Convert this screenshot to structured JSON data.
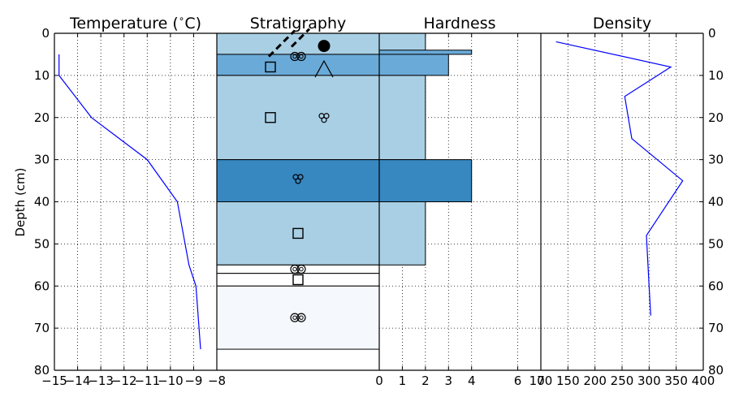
{
  "figure": {
    "ylabel": "Depth (cm)",
    "y_ticks": [
      0,
      10,
      20,
      30,
      40,
      50,
      60,
      70,
      80
    ],
    "ylim": [
      80,
      0
    ]
  },
  "chart_data": [
    {
      "type": "line",
      "title": "Temperature ($^\\circ$C)",
      "title_main": "Temperature (",
      "title_deg": "∘",
      "title_tail": "C)",
      "xlim": [
        -15,
        -8
      ],
      "x_ticks": [
        "−15",
        "−14",
        "−13",
        "−12",
        "−11",
        "−10",
        "−9",
        "−8"
      ],
      "x_tick_values": [
        -15,
        -14,
        -13,
        -12,
        -11,
        -10,
        -9,
        -8
      ],
      "grid": true,
      "line_color": "#0000ff",
      "series": [
        {
          "x": [
            -14.8,
            -14.8,
            -13.4,
            -11.0,
            -9.7,
            -9.2,
            -8.9,
            -8.7
          ],
          "y": [
            5,
            10,
            20,
            30,
            40,
            55,
            60,
            75
          ]
        }
      ]
    },
    {
      "type": "table",
      "title": "Stratigraphy",
      "layers": [
        {
          "top": 0,
          "bottom": 5,
          "color": "#a9cfe4"
        },
        {
          "top": 5,
          "bottom": 10,
          "color": "#6aaad8"
        },
        {
          "top": 10,
          "bottom": 30,
          "color": "#a9cfe4"
        },
        {
          "top": 30,
          "bottom": 40,
          "color": "#3787c0"
        },
        {
          "top": 40,
          "bottom": 55,
          "color": "#a9cfe4"
        },
        {
          "top": 55,
          "bottom": 57,
          "color": "#ffffff"
        },
        {
          "top": 57,
          "bottom": 60,
          "color": "#ffffff"
        },
        {
          "top": 60,
          "bottom": 75,
          "color": "#f5f9fe"
        }
      ],
      "symbols": [
        {
          "shape": "slash-dashed",
          "depth": 0.5,
          "pos": 0.42
        },
        {
          "shape": "filled-circle",
          "depth": 3,
          "pos": 0.66
        },
        {
          "shape": "double-circle",
          "depth": 5.5,
          "pos": 0.5
        },
        {
          "shape": "square",
          "depth": 8,
          "pos": 0.33
        },
        {
          "shape": "triangle",
          "depth": 8.5,
          "pos": 0.66
        },
        {
          "shape": "square",
          "depth": 20,
          "pos": 0.33
        },
        {
          "shape": "triple-circle",
          "depth": 20,
          "pos": 0.66
        },
        {
          "shape": "triple-circle",
          "depth": 34.5,
          "pos": 0.5
        },
        {
          "shape": "square",
          "depth": 47.5,
          "pos": 0.5
        },
        {
          "shape": "double-circle",
          "depth": 56,
          "pos": 0.5
        },
        {
          "shape": "square",
          "depth": 58.5,
          "pos": 0.5
        },
        {
          "shape": "double-circle",
          "depth": 67.5,
          "pos": 0.5
        }
      ]
    },
    {
      "type": "bar",
      "title": "Hardness",
      "xlim": [
        0,
        7
      ],
      "x_ticks": [
        "0",
        "1",
        "2",
        "3",
        "4",
        "6",
        "7"
      ],
      "x_tick_values": [
        0,
        1,
        2,
        3,
        4,
        6,
        7
      ],
      "grid": true,
      "bars": [
        {
          "top": 0,
          "bottom": 5,
          "value": 2,
          "color": "#a9cfe4"
        },
        {
          "top": 4,
          "bottom": 5,
          "value": 4,
          "color": "#6aaad8"
        },
        {
          "top": 5,
          "bottom": 10,
          "value": 3,
          "color": "#6aaad8"
        },
        {
          "top": 10,
          "bottom": 30,
          "value": 2,
          "color": "#a9cfe4"
        },
        {
          "top": 30,
          "bottom": 40,
          "value": 4,
          "color": "#3787c0"
        },
        {
          "top": 40,
          "bottom": 55,
          "value": 2,
          "color": "#a9cfe4"
        }
      ]
    },
    {
      "type": "line",
      "title": "Density",
      "xlim": [
        100,
        400
      ],
      "x_ticks": [
        "100",
        "150",
        "200",
        "250",
        "300",
        "350",
        "400"
      ],
      "x_tick_values": [
        100,
        150,
        200,
        250,
        300,
        350,
        400
      ],
      "grid": true,
      "line_color": "#0000ff",
      "series": [
        {
          "x": [
            128,
            340,
            255,
            268,
            362,
            295,
            300,
            303
          ],
          "y": [
            2,
            8,
            15,
            25,
            35,
            48,
            60,
            67
          ]
        }
      ]
    }
  ]
}
